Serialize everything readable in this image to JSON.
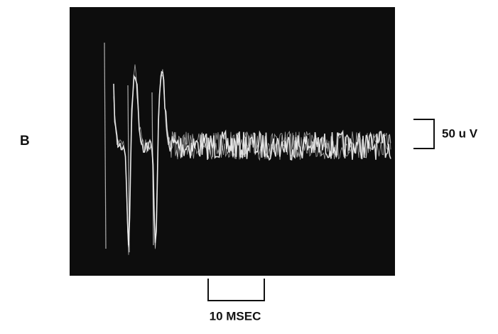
{
  "panel_label": "B",
  "scale_bars": {
    "voltage": "50 u V",
    "time": "10 MSEC"
  }
}
